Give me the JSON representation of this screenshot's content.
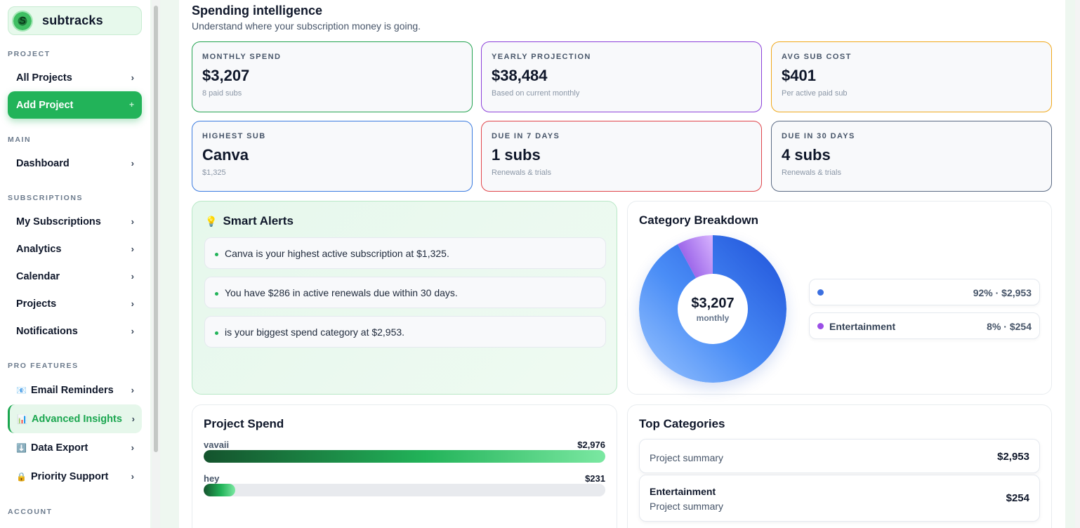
{
  "brand": {
    "name": "subtracks",
    "logo_letter": "S"
  },
  "sidebar": {
    "sections": {
      "project": "PROJECT",
      "main": "MAIN",
      "subscriptions": "SUBSCRIPTIONS",
      "pro": "PRO FEATURES",
      "account": "ACCOUNT"
    },
    "items": {
      "all_projects": "All Projects",
      "add_project": "Add Project",
      "dashboard": "Dashboard",
      "my_subscriptions": "My Subscriptions",
      "analytics": "Analytics",
      "calendar": "Calendar",
      "projects": "Projects",
      "notifications": "Notifications",
      "email_reminders": "Email Reminders",
      "advanced_insights": "Advanced Insights",
      "data_export": "Data Export",
      "priority_support": "Priority Support"
    },
    "icons": {
      "email_reminders": "📧",
      "advanced_insights": "📊",
      "data_export": "⬇️",
      "priority_support": "🔒"
    },
    "chevron": "›",
    "plus": "+"
  },
  "header": {
    "title": "Spending intelligence",
    "subtitle": "Understand where your subscription money is going."
  },
  "stats": [
    {
      "label": "MONTHLY SPEND",
      "value": "$3,207",
      "note": "8 paid subs",
      "color": "#22a34f"
    },
    {
      "label": "YEARLY PROJECTION",
      "value": "$38,484",
      "note": "Based on current monthly",
      "color": "#8b3fd9"
    },
    {
      "label": "AVG SUB COST",
      "value": "$401",
      "note": "Per active paid sub",
      "color": "#f0a81a"
    },
    {
      "label": "HIGHEST SUB",
      "value": "Canva",
      "note": "$1,325",
      "color": "#3b7be0"
    },
    {
      "label": "DUE IN 7 DAYS",
      "value": "1 subs",
      "note": "Renewals & trials",
      "color": "#e0454a"
    },
    {
      "label": "DUE IN 30 DAYS",
      "value": "4 subs",
      "note": "Renewals & trials",
      "color": "#5b6b84"
    }
  ],
  "smart_alerts": {
    "icon": "💡",
    "title": "Smart Alerts",
    "items": [
      "Canva is your highest active subscription at $1,325.",
      "You have $286 in active renewals due within 30 days.",
      "is your biggest spend category at $2,953."
    ]
  },
  "category_breakdown": {
    "title": "Category Breakdown",
    "center_amount": "$3,207",
    "center_label": "monthly",
    "legend": [
      {
        "name": "",
        "value": "92% · $2,953",
        "color": "#3b6fe0"
      },
      {
        "name": "Entertainment",
        "value": "8% · $254",
        "color": "#9b4fe6"
      }
    ]
  },
  "project_spend": {
    "title": "Project Spend",
    "rows": [
      {
        "name": "vavaii",
        "amount": "$2,976",
        "fraction": 1.0
      },
      {
        "name": "hey",
        "amount": "$231",
        "fraction": 0.078
      }
    ]
  },
  "top_categories": {
    "title": "Top Categories",
    "rows": [
      {
        "name": "",
        "summary": "Project summary",
        "amount": "$2,953"
      },
      {
        "name": "Entertainment",
        "summary": "Project summary",
        "amount": "$254"
      }
    ]
  },
  "chart_data": {
    "type": "pie",
    "title": "Category Breakdown",
    "categories": [
      "",
      "Entertainment"
    ],
    "values": [
      2953,
      254
    ],
    "percentages": [
      92,
      8
    ],
    "colors": [
      "#2f66e3",
      "#9b4fe6"
    ]
  }
}
